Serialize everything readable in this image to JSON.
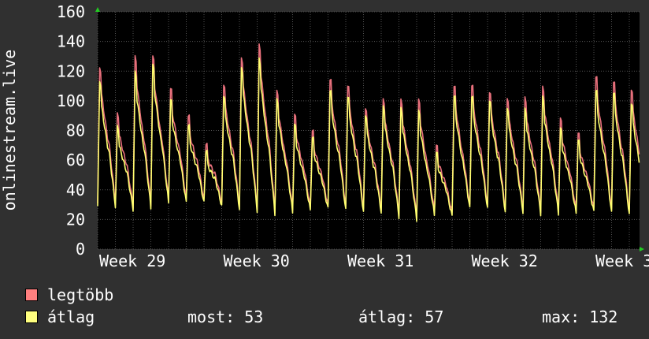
{
  "chart_data": {
    "type": "line",
    "ylabel": "onlinestream.live",
    "ylim": [
      0,
      160
    ],
    "yticks": [
      0,
      20,
      40,
      60,
      80,
      100,
      120,
      140,
      160
    ],
    "x_tick_labels": [
      "Week 29",
      "Week 30",
      "Week 31",
      "Week 32",
      "Week 3"
    ],
    "grid": true,
    "background": "#000000",
    "frame_background": "#303030",
    "grid_color": "#505050",
    "daily_peaks_max": [
      130,
      96,
      137,
      137,
      114,
      95,
      75,
      118,
      137,
      146,
      112,
      95,
      84,
      122,
      118,
      101,
      107,
      106,
      106,
      73,
      117,
      118,
      113,
      108,
      108,
      115,
      92,
      82,
      124,
      121,
      115
    ],
    "daily_troughs_max": [
      31,
      31,
      29,
      30,
      33,
      33,
      33,
      31,
      29,
      28,
      26,
      27,
      28,
      29,
      28,
      27,
      27,
      24,
      22,
      25,
      24,
      29,
      29,
      27,
      27,
      26,
      26,
      26,
      27,
      26,
      25
    ],
    "daily_peaks_avg": [
      120,
      87,
      126,
      131,
      106,
      88,
      70,
      110,
      130,
      136,
      106,
      88,
      79,
      114,
      110,
      96,
      102,
      100,
      98,
      68,
      110,
      110,
      107,
      101,
      100,
      108,
      85,
      77,
      114,
      113,
      105
    ],
    "daily_troughs_avg": [
      29,
      29,
      27,
      28,
      31,
      31,
      31,
      29,
      27,
      26,
      24,
      25,
      26,
      27,
      26,
      25,
      25,
      22,
      20,
      23,
      22,
      27,
      27,
      25,
      25,
      24,
      24,
      24,
      25,
      24,
      23
    ],
    "series": [
      {
        "name": "legtöbb",
        "color": "#e8707c"
      },
      {
        "name": "átlag",
        "color": "#ffff70"
      }
    ]
  },
  "legend": {
    "max_label": "legtöbb",
    "avg_label": "átlag",
    "max_color": "#ff7f7f",
    "avg_color": "#ffff7f"
  },
  "stats": {
    "current": "most: 53",
    "average": "átlag: 57",
    "maximum": "max: 132"
  }
}
